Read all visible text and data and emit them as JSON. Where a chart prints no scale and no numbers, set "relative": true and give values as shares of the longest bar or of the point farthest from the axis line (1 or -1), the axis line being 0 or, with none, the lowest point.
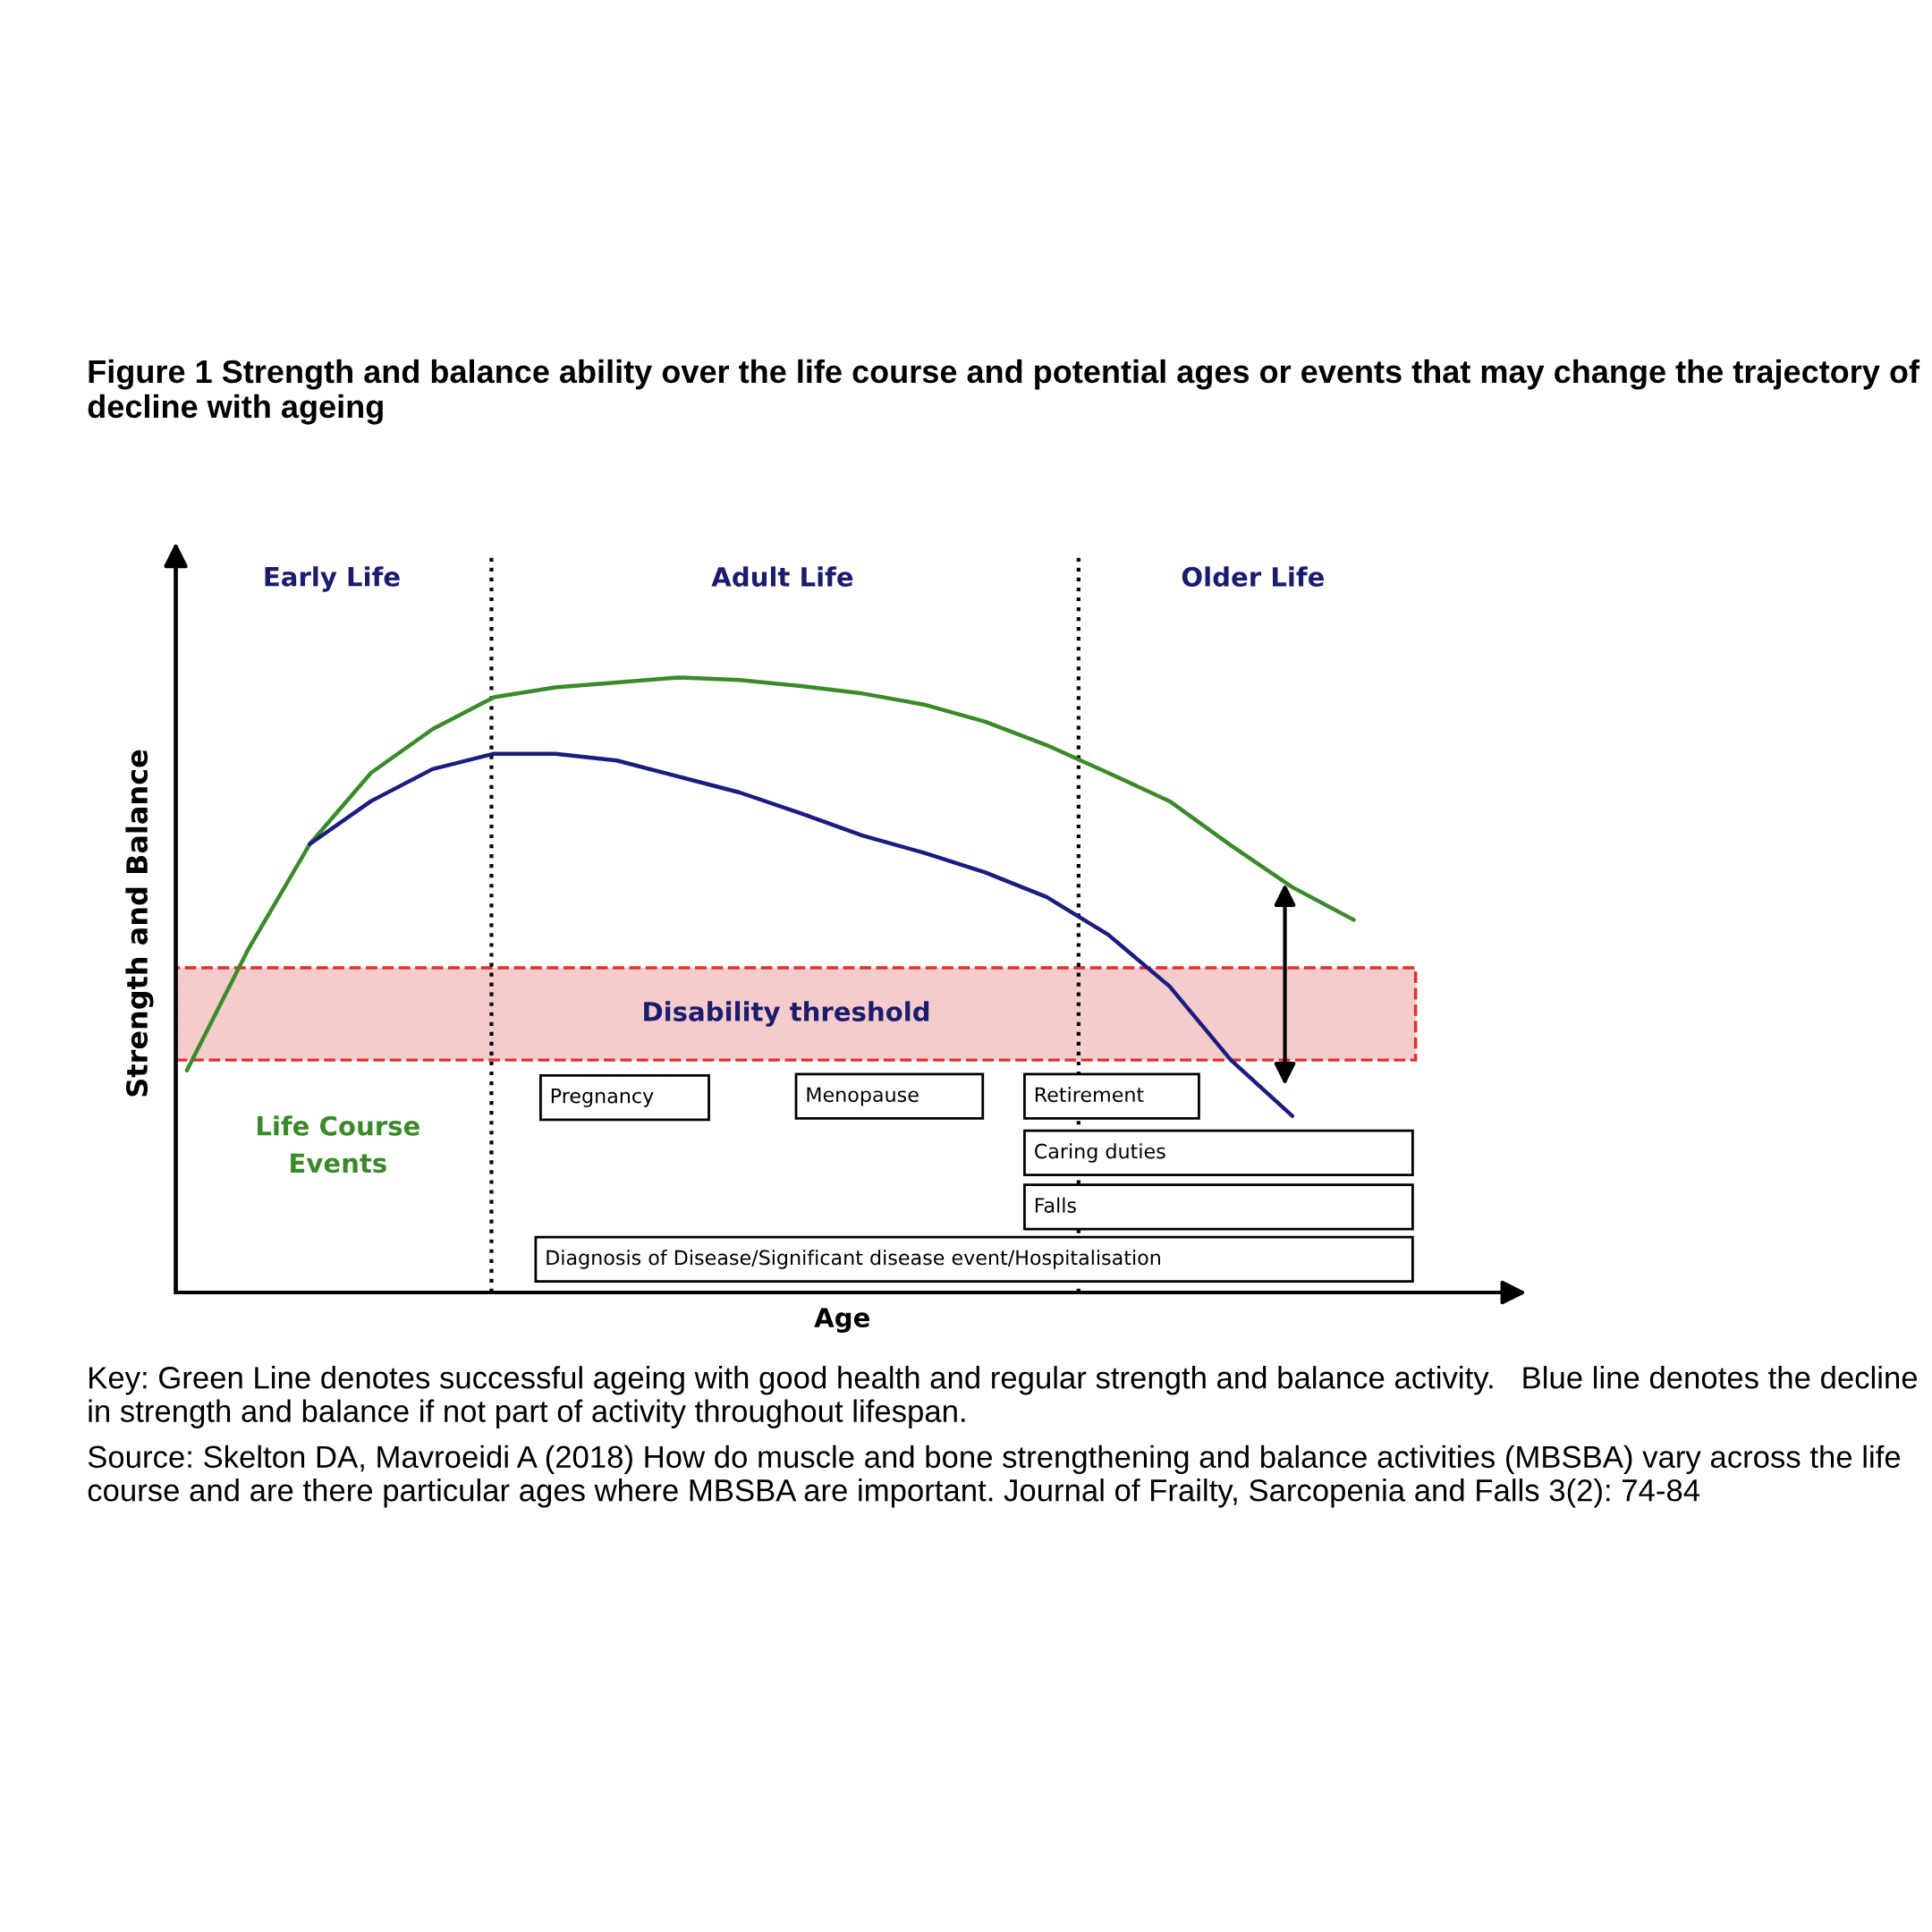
{
  "chart_data": {
    "type": "line",
    "relative": true,
    "title": "Figure 1 Strength and balance ability over the life course and potential ages or events that may change the trajectory of decline with ageing",
    "xlabel": "Age",
    "ylabel": "Strength and Balance",
    "categories": [
      null,
      null,
      null,
      null,
      null,
      null,
      null,
      null,
      null,
      null,
      null,
      null,
      null,
      null,
      null,
      null,
      null,
      null,
      null,
      null
    ],
    "series": [
      {
        "color": "#3a8a2a",
        "values": [
          0.361,
          0.558,
          0.729,
          0.845,
          0.916,
          0.968,
          0.984,
          0.992,
          1.0,
          0.996,
          0.986,
          0.974,
          0.956,
          0.928,
          0.89,
          0.845,
          0.799,
          0.727,
          0.659,
          0.606
        ]
      },
      {
        "color": "#1c1c80",
        "values": [
          null,
          null,
          0.729,
          0.799,
          0.851,
          0.876,
          0.876,
          0.865,
          0.839,
          0.813,
          0.779,
          0.743,
          0.715,
          0.683,
          0.643,
          0.582,
          0.498,
          0.378,
          0.287,
          null
        ]
      }
    ],
    "bands": [
      {
        "axis": "y",
        "from": 0.378,
        "to": 0.528,
        "label": "Disability threshold",
        "color": "#f4cccc"
      }
    ],
    "annotations": [
      "Early Life",
      "Adult Life",
      "Older Life",
      "Life Course\nEvents",
      "Pregnancy",
      "Menopause",
      "Retirement",
      "Caring duties",
      "Falls",
      "Diagnosis of Disease/Significant disease event/Hospitalisation",
      "Key: Green Line denotes successful ageing with good health and regular strength and balance activity.   Blue line denotes the decline in strength and balance if not part of activity throughout lifespan.",
      "Source: Skelton DA, Mavroeidi A (2018) How do muscle and bone strengthening and balance activities (MBSBA) vary across the life course and are there particular ages where MBSBA are important. Journal of Frailty, Sarcopenia and Falls 3(2): 74-84"
    ]
  }
}
